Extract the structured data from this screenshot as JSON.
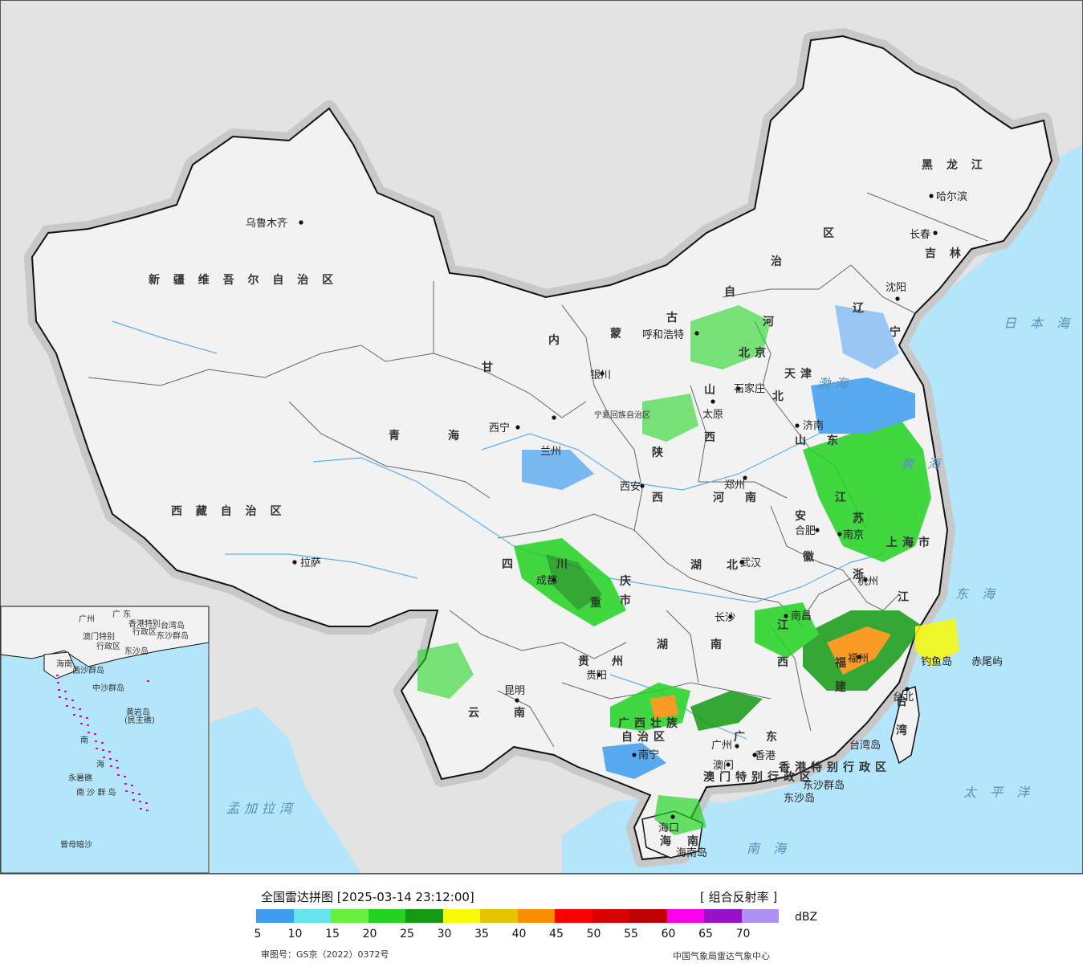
{
  "map": {
    "type": "radar-mosaic-map",
    "provinces": [
      {
        "name": "新 疆 维 吾 尔 自 治 区"
      },
      {
        "name": "西 藏 自 治 区"
      },
      {
        "name": "青"
      },
      {
        "name": "海"
      },
      {
        "name": "甘"
      },
      {
        "name": "内"
      },
      {
        "name": "蒙"
      },
      {
        "name": "古"
      },
      {
        "name": "自"
      },
      {
        "name": "治"
      },
      {
        "name": "区"
      },
      {
        "name": "黑 龙 江"
      },
      {
        "name": "吉 林"
      },
      {
        "name": "辽"
      },
      {
        "name": "宁"
      },
      {
        "name": "河"
      },
      {
        "name": "北"
      },
      {
        "name": "山"
      },
      {
        "name": "西"
      },
      {
        "name": "陕"
      },
      {
        "name": "西"
      },
      {
        "name": "河"
      },
      {
        "name": "南"
      },
      {
        "name": "山"
      },
      {
        "name": "东"
      },
      {
        "name": "江"
      },
      {
        "name": "苏"
      },
      {
        "name": "安"
      },
      {
        "name": "徽"
      },
      {
        "name": "上海市"
      },
      {
        "name": "浙"
      },
      {
        "name": "江"
      },
      {
        "name": "四"
      },
      {
        "name": "川"
      },
      {
        "name": "重"
      },
      {
        "name": "庆"
      },
      {
        "name": "市"
      },
      {
        "name": "湖"
      },
      {
        "name": "北"
      },
      {
        "name": "湖"
      },
      {
        "name": "南"
      },
      {
        "name": "江"
      },
      {
        "name": "西"
      },
      {
        "name": "福"
      },
      {
        "name": "建"
      },
      {
        "name": "贵"
      },
      {
        "name": "州"
      },
      {
        "name": "云"
      },
      {
        "name": "南"
      },
      {
        "name": "广西壮族"
      },
      {
        "name": "自治区"
      },
      {
        "name": "广"
      },
      {
        "name": "东"
      },
      {
        "name": "海"
      },
      {
        "name": "南"
      },
      {
        "name": "台"
      },
      {
        "name": "湾"
      },
      {
        "name": "宁夏回族自治区"
      },
      {
        "name": "北京"
      },
      {
        "name": "天津"
      },
      {
        "name": "香港特别行政区"
      },
      {
        "name": "澳门特别行政区"
      }
    ],
    "cities": [
      {
        "name": "乌鲁木齐"
      },
      {
        "name": "拉萨"
      },
      {
        "name": "西宁"
      },
      {
        "name": "兰州"
      },
      {
        "name": "银川"
      },
      {
        "name": "呼和浩特"
      },
      {
        "name": "哈尔滨"
      },
      {
        "name": "长春"
      },
      {
        "name": "沈阳"
      },
      {
        "name": "石家庄"
      },
      {
        "name": "太原"
      },
      {
        "name": "济南"
      },
      {
        "name": "西安"
      },
      {
        "name": "郑州"
      },
      {
        "name": "合肥"
      },
      {
        "name": "南京"
      },
      {
        "name": "杭州"
      },
      {
        "name": "成都"
      },
      {
        "name": "武汉"
      },
      {
        "name": "长沙"
      },
      {
        "name": "南昌"
      },
      {
        "name": "福州"
      },
      {
        "name": "贵阳"
      },
      {
        "name": "昆明"
      },
      {
        "name": "南宁"
      },
      {
        "name": "广州"
      },
      {
        "name": "香港"
      },
      {
        "name": "澳门"
      },
      {
        "name": "海口"
      },
      {
        "name": "台北"
      }
    ],
    "seas": [
      {
        "name": "日 本 海"
      },
      {
        "name": "渤海"
      },
      {
        "name": "黄 海"
      },
      {
        "name": "东 海"
      },
      {
        "name": "太 平 洋"
      },
      {
        "name": "南 海"
      },
      {
        "name": "孟加拉湾"
      }
    ],
    "islands": [
      {
        "name": "钓鱼岛"
      },
      {
        "name": "赤尾屿"
      },
      {
        "name": "台湾岛"
      },
      {
        "name": "东沙群岛"
      },
      {
        "name": "东沙岛"
      },
      {
        "name": "海南岛"
      }
    ],
    "inset": {
      "labels": [
        {
          "name": "广州"
        },
        {
          "name": "广 东"
        },
        {
          "name": "香港特别"
        },
        {
          "name": "行政区"
        },
        {
          "name": "澳门特别"
        },
        {
          "name": "行政区"
        },
        {
          "name": "东沙群岛"
        },
        {
          "name": "东沙岛"
        },
        {
          "name": "台湾岛"
        },
        {
          "name": "海南"
        },
        {
          "name": "西沙群岛"
        },
        {
          "name": "中沙群岛"
        },
        {
          "name": "黄岩岛"
        },
        {
          "name": "(民主礁)"
        },
        {
          "name": "南"
        },
        {
          "name": "海"
        },
        {
          "name": "永暑礁"
        },
        {
          "name": "南 沙 群 岛"
        },
        {
          "name": "曾母暗沙"
        }
      ]
    },
    "colors": {
      "land": "#f2f2f2",
      "outside": "#e3e3e3",
      "sea": "#b3e5fb",
      "border": "#111111",
      "river": "#5ab0e6"
    }
  },
  "legend": {
    "title": "全国雷达拼图 [2025-03-14 23:12:00]",
    "product": "[ 组合反射率 ]",
    "unit": "dBZ",
    "ticks": [
      "5",
      "10",
      "15",
      "20",
      "25",
      "30",
      "35",
      "40",
      "45",
      "50",
      "55",
      "60",
      "65",
      "70"
    ],
    "colors": [
      "#3d9df0",
      "#66e4ee",
      "#67f03f",
      "#22d321",
      "#139a12",
      "#fafa09",
      "#e6c500",
      "#fc8c00",
      "#fc0000",
      "#d80000",
      "#c00000",
      "#fc00ec",
      "#9711c6",
      "#ad90f0"
    ],
    "approval": "审图号：GS京（2022）0372号",
    "org": "中国气象局雷达气象中心"
  }
}
